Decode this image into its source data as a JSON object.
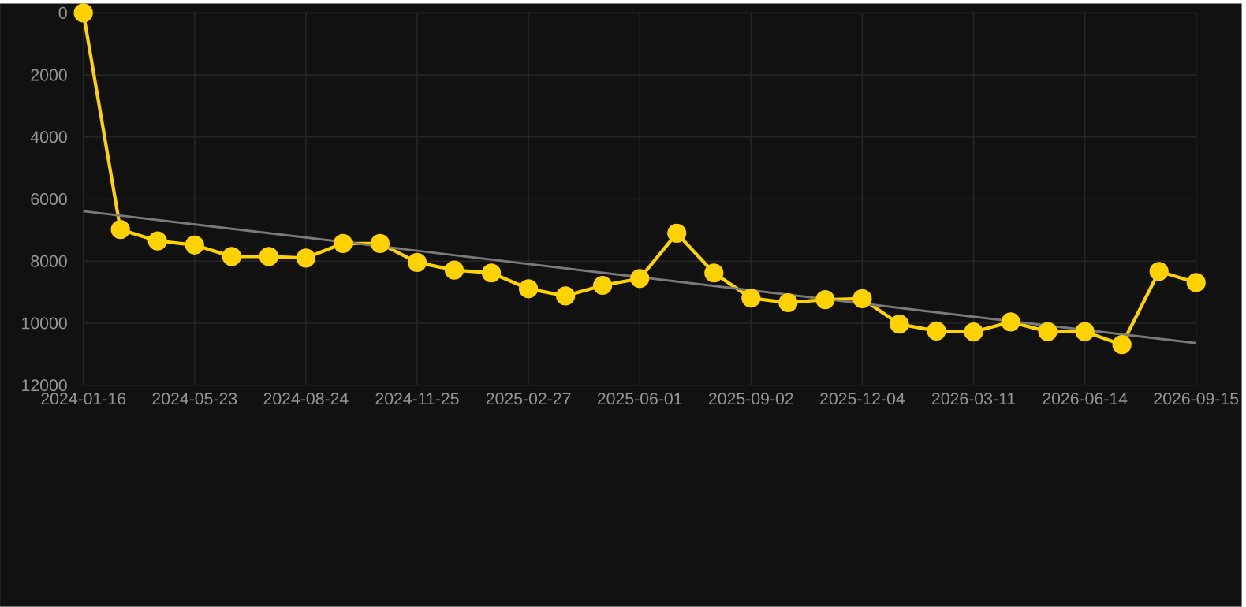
{
  "chart_data": {
    "type": "line",
    "categories": [
      "2024-01-16",
      null,
      null,
      "2024-05-23",
      null,
      null,
      "2024-08-24",
      null,
      null,
      "2024-11-25",
      null,
      null,
      "2025-02-27",
      null,
      null,
      "2025-06-01",
      null,
      null,
      "2025-09-02",
      null,
      null,
      "2025-12-04",
      null,
      null,
      "2026-03-11",
      null,
      null,
      "2026-06-14",
      null,
      null,
      "2026-09-15"
    ],
    "series": [
      {
        "color": "#ffd200",
        "marker": "circle",
        "values": [
          0,
          6980,
          7350,
          7480,
          7850,
          7850,
          7900,
          7430,
          7430,
          8040,
          8290,
          8380,
          8890,
          9120,
          8780,
          8560,
          7100,
          8380,
          9190,
          9340,
          9240,
          9210,
          10030,
          10250,
          10280,
          9960,
          10270,
          10270,
          10690,
          8330,
          8690
        ]
      },
      {
        "color": "#7a7a7a",
        "marker": "none",
        "values": [
          6390,
          null,
          null,
          null,
          null,
          null,
          null,
          null,
          null,
          null,
          null,
          null,
          null,
          null,
          null,
          null,
          null,
          null,
          null,
          null,
          null,
          null,
          null,
          null,
          null,
          null,
          null,
          null,
          null,
          null,
          10640
        ]
      }
    ],
    "ylim": [
      12000,
      0
    ],
    "yticks": [
      0,
      2000,
      4000,
      6000,
      8000,
      10000,
      12000
    ],
    "grid": true,
    "line_style": "solid"
  }
}
